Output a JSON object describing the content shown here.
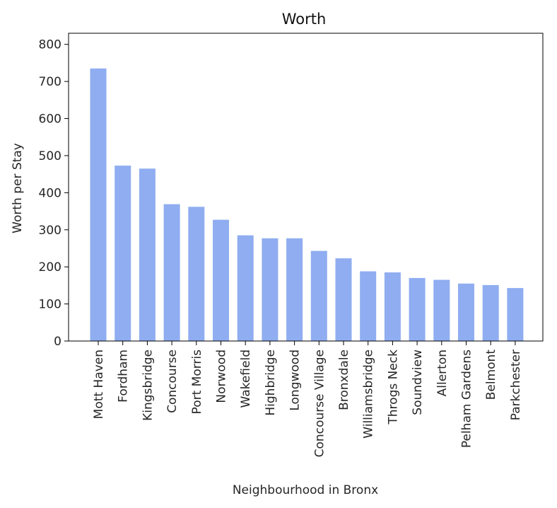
{
  "chart_data": {
    "type": "bar",
    "title": "Worth",
    "xlabel": "Neighbourhood in Bronx",
    "ylabel": "Worth per Stay",
    "ylim": [
      0,
      830
    ],
    "yticks": [
      0,
      100,
      200,
      300,
      400,
      500,
      600,
      700,
      800
    ],
    "categories": [
      "Mott Haven",
      "Fordham",
      "Kingsbridge",
      "Concourse",
      "Port Morris",
      "Norwood",
      "Wakefield",
      "Highbridge",
      "Longwood",
      "Concourse Village",
      "Bronxdale",
      "Williamsbridge",
      "Throgs Neck",
      "Soundview",
      "Allerton",
      "Pelham Gardens",
      "Belmont",
      "Parkchester"
    ],
    "values": [
      735,
      473,
      465,
      369,
      362,
      327,
      285,
      277,
      277,
      243,
      223,
      188,
      185,
      170,
      165,
      155,
      151,
      143
    ],
    "bar_color": "#8fadf0",
    "grid": false,
    "legend": "none"
  }
}
